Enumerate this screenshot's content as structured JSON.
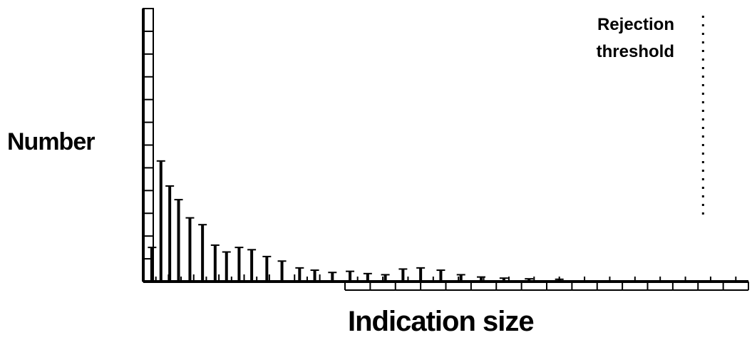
{
  "chart_data": {
    "type": "bar",
    "title": "",
    "xlabel": "Indication size",
    "ylabel": "Number",
    "x_tick_count": 24,
    "y_tick_count": 12,
    "xlim": [
      0,
      24
    ],
    "ylim": [
      0,
      12
    ],
    "annotation": {
      "line1": "Rejection",
      "line2": "threshold",
      "x": 22.2,
      "style": "dotted vertical line"
    },
    "grid": false,
    "series": [
      {
        "values": [
          [
            0.35,
            1.5
          ],
          [
            0.7,
            5.3
          ],
          [
            1.05,
            4.2
          ],
          [
            1.4,
            3.6
          ],
          [
            1.85,
            2.8
          ],
          [
            2.35,
            2.5
          ],
          [
            2.85,
            1.6
          ],
          [
            3.3,
            1.3
          ],
          [
            3.8,
            1.5
          ],
          [
            4.3,
            1.4
          ],
          [
            4.9,
            1.1
          ],
          [
            5.5,
            0.9
          ],
          [
            6.2,
            0.6
          ],
          [
            6.8,
            0.5
          ],
          [
            7.5,
            0.4
          ],
          [
            8.2,
            0.45
          ],
          [
            8.9,
            0.35
          ],
          [
            9.6,
            0.3
          ],
          [
            10.3,
            0.55
          ],
          [
            11.0,
            0.6
          ],
          [
            11.8,
            0.5
          ],
          [
            12.6,
            0.3
          ],
          [
            13.4,
            0.2
          ],
          [
            14.3,
            0.15
          ],
          [
            15.3,
            0.12
          ],
          [
            16.5,
            0.1
          ]
        ]
      }
    ]
  }
}
